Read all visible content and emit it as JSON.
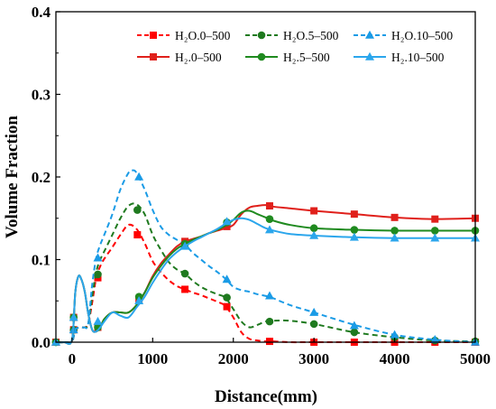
{
  "chart_data": {
    "type": "line",
    "title": "",
    "xlabel": "Distance(mm)",
    "ylabel": "Volume Fraction",
    "xlim": [
      -200,
      5000
    ],
    "ylim": [
      0,
      0.4
    ],
    "x_ticks": [
      0,
      1000,
      2000,
      3000,
      4000,
      5000
    ],
    "x_tick_labels": [
      "0",
      "1000",
      "2000",
      "3000",
      "4000",
      "5000"
    ],
    "y_ticks": [
      0.0,
      0.1,
      0.2,
      0.3,
      0.4
    ],
    "y_tick_labels": [
      "0.0",
      "0.1",
      "0.2",
      "0.3",
      "0.4"
    ],
    "grid": false,
    "legend_position": "top-right",
    "series": [
      {
        "name": "H₂O.0–500",
        "color": "#ff0000",
        "dash": "dashed",
        "marker": "square",
        "x": [
          -200,
          -100,
          0,
          40,
          100,
          150,
          200,
          250,
          300,
          350,
          400,
          500,
          600,
          700,
          800,
          900,
          1000,
          1100,
          1200,
          1300,
          1400,
          1500,
          1600,
          1700,
          1800,
          1900,
          2000,
          2100,
          2200,
          2300,
          2400,
          2500,
          2700,
          3000,
          3500,
          4000,
          4500,
          5000
        ],
        "y": [
          0.0,
          0.0,
          0.001,
          0.015,
          0.018,
          0.018,
          0.022,
          0.048,
          0.078,
          0.092,
          0.101,
          0.115,
          0.13,
          0.142,
          0.137,
          0.12,
          0.098,
          0.085,
          0.075,
          0.068,
          0.064,
          0.06,
          0.057,
          0.053,
          0.049,
          0.044,
          0.03,
          0.012,
          0.004,
          0.002,
          0.001,
          0.001,
          0.0,
          0.0,
          0.0,
          0.0,
          0.0,
          0.0
        ],
        "marker_x": [
          -200,
          20,
          320,
          810,
          1400,
          1920,
          2450,
          3000,
          3500,
          4000,
          4500,
          5000
        ],
        "marker_y": [
          0.0,
          0.015,
          0.078,
          0.13,
          0.064,
          0.043,
          0.001,
          0.0,
          0.0,
          0.0,
          0.0,
          0.0
        ]
      },
      {
        "name": "H₂O.5–500",
        "color": "#1f7a1f",
        "dash": "dashed",
        "marker": "circle",
        "x": [
          -200,
          -100,
          0,
          40,
          100,
          150,
          200,
          250,
          300,
          350,
          400,
          500,
          600,
          700,
          800,
          900,
          1000,
          1100,
          1200,
          1300,
          1400,
          1500,
          1600,
          1700,
          1800,
          1900,
          2000,
          2100,
          2200,
          2300,
          2400,
          2500,
          2700,
          3000,
          3500,
          4000,
          4500,
          5000
        ],
        "y": [
          0.0,
          0.0,
          0.001,
          0.015,
          0.018,
          0.018,
          0.022,
          0.055,
          0.085,
          0.1,
          0.11,
          0.13,
          0.15,
          0.165,
          0.167,
          0.155,
          0.13,
          0.112,
          0.097,
          0.088,
          0.083,
          0.074,
          0.067,
          0.062,
          0.058,
          0.054,
          0.04,
          0.025,
          0.018,
          0.021,
          0.025,
          0.026,
          0.026,
          0.022,
          0.012,
          0.006,
          0.002,
          0.001
        ],
        "marker_x": [
          -200,
          20,
          320,
          810,
          1400,
          1920,
          2450,
          3000,
          3500,
          4000,
          4500,
          5000
        ],
        "marker_y": [
          0.0,
          0.015,
          0.082,
          0.16,
          0.083,
          0.054,
          0.025,
          0.022,
          0.012,
          0.006,
          0.002,
          0.001
        ]
      },
      {
        "name": "H₂O.10–500",
        "color": "#1a9be6",
        "dash": "dashed",
        "marker": "triangle",
        "x": [
          -200,
          -100,
          0,
          40,
          100,
          150,
          200,
          250,
          300,
          350,
          400,
          500,
          600,
          700,
          750,
          800,
          900,
          1000,
          1100,
          1200,
          1300,
          1400,
          1500,
          1600,
          1700,
          1800,
          1900,
          2000,
          2100,
          2200,
          2300,
          2400,
          2500,
          2700,
          3000,
          3500,
          4000,
          4500,
          5000
        ],
        "y": [
          0.0,
          0.0,
          0.001,
          0.015,
          0.018,
          0.018,
          0.022,
          0.07,
          0.102,
          0.118,
          0.13,
          0.155,
          0.185,
          0.205,
          0.208,
          0.205,
          0.185,
          0.16,
          0.14,
          0.13,
          0.124,
          0.118,
          0.108,
          0.1,
          0.092,
          0.085,
          0.077,
          0.067,
          0.063,
          0.061,
          0.058,
          0.056,
          0.053,
          0.045,
          0.036,
          0.021,
          0.009,
          0.003,
          0.0
        ],
        "marker_x": [
          -200,
          20,
          320,
          830,
          1400,
          1920,
          2450,
          3000,
          3500,
          4000,
          4500,
          5000
        ],
        "marker_y": [
          0.0,
          0.015,
          0.102,
          0.2,
          0.118,
          0.076,
          0.056,
          0.036,
          0.02,
          0.009,
          0.003,
          0.0
        ]
      },
      {
        "name": "H₂.0–500",
        "color": "#e0201b",
        "dash": "solid",
        "marker": "square",
        "x": [
          -200,
          -100,
          0,
          40,
          80,
          120,
          160,
          200,
          250,
          300,
          350,
          400,
          500,
          600,
          700,
          800,
          900,
          1000,
          1100,
          1200,
          1300,
          1400,
          1500,
          1600,
          1700,
          1800,
          1900,
          2000,
          2100,
          2200,
          2300,
          2400,
          2500,
          2700,
          3000,
          3500,
          4000,
          4500,
          5000
        ],
        "y": [
          0.0,
          0.0,
          0.003,
          0.06,
          0.08,
          0.075,
          0.06,
          0.035,
          0.015,
          0.013,
          0.018,
          0.028,
          0.036,
          0.036,
          0.036,
          0.045,
          0.06,
          0.08,
          0.095,
          0.106,
          0.116,
          0.122,
          0.125,
          0.128,
          0.132,
          0.135,
          0.138,
          0.142,
          0.155,
          0.163,
          0.165,
          0.166,
          0.164,
          0.162,
          0.159,
          0.155,
          0.151,
          0.149,
          0.15
        ],
        "marker_x": [
          -200,
          20,
          320,
          830,
          1400,
          1920,
          2450,
          3000,
          3500,
          4000,
          4500,
          5000
        ],
        "marker_y": [
          0.0,
          0.03,
          0.018,
          0.052,
          0.122,
          0.14,
          0.165,
          0.159,
          0.155,
          0.151,
          0.149,
          0.15
        ]
      },
      {
        "name": "H₂.5–500",
        "color": "#1f8a1f",
        "dash": "solid",
        "marker": "circle",
        "x": [
          -200,
          -100,
          0,
          40,
          80,
          120,
          160,
          200,
          250,
          300,
          350,
          400,
          500,
          600,
          700,
          800,
          900,
          1000,
          1100,
          1200,
          1300,
          1400,
          1500,
          1600,
          1700,
          1800,
          1900,
          2000,
          2100,
          2200,
          2300,
          2400,
          2500,
          2700,
          3000,
          3500,
          4000,
          4500,
          5000
        ],
        "y": [
          0.0,
          0.0,
          0.003,
          0.06,
          0.08,
          0.075,
          0.06,
          0.035,
          0.015,
          0.013,
          0.018,
          0.028,
          0.036,
          0.036,
          0.036,
          0.045,
          0.06,
          0.078,
          0.092,
          0.104,
          0.113,
          0.119,
          0.124,
          0.128,
          0.132,
          0.136,
          0.141,
          0.148,
          0.157,
          0.159,
          0.155,
          0.151,
          0.147,
          0.142,
          0.138,
          0.136,
          0.135,
          0.135,
          0.135
        ],
        "marker_x": [
          -200,
          20,
          320,
          830,
          1400,
          1920,
          2450,
          3000,
          3500,
          4000,
          4500,
          5000
        ],
        "marker_y": [
          0.0,
          0.03,
          0.018,
          0.055,
          0.119,
          0.145,
          0.149,
          0.138,
          0.136,
          0.135,
          0.135,
          0.135
        ]
      },
      {
        "name": "H₂.10–500",
        "color": "#2ba6ec",
        "dash": "solid",
        "marker": "triangle",
        "x": [
          -200,
          -100,
          0,
          40,
          80,
          120,
          160,
          200,
          250,
          300,
          350,
          400,
          500,
          600,
          700,
          800,
          900,
          1000,
          1100,
          1200,
          1300,
          1400,
          1500,
          1600,
          1700,
          1800,
          1900,
          2000,
          2100,
          2200,
          2300,
          2400,
          2500,
          2700,
          3000,
          3500,
          4000,
          4500,
          5000
        ],
        "y": [
          0.0,
          0.0,
          0.003,
          0.06,
          0.08,
          0.075,
          0.06,
          0.035,
          0.015,
          0.013,
          0.018,
          0.025,
          0.036,
          0.032,
          0.03,
          0.042,
          0.055,
          0.072,
          0.087,
          0.1,
          0.109,
          0.116,
          0.122,
          0.127,
          0.132,
          0.137,
          0.143,
          0.148,
          0.15,
          0.148,
          0.143,
          0.138,
          0.135,
          0.131,
          0.129,
          0.127,
          0.126,
          0.126,
          0.126
        ],
        "marker_x": [
          -200,
          20,
          320,
          830,
          1400,
          1920,
          2450,
          3000,
          3500,
          4000,
          4500,
          5000
        ],
        "marker_y": [
          0.0,
          0.03,
          0.025,
          0.05,
          0.116,
          0.146,
          0.136,
          0.129,
          0.127,
          0.126,
          0.126,
          0.126
        ]
      }
    ]
  }
}
